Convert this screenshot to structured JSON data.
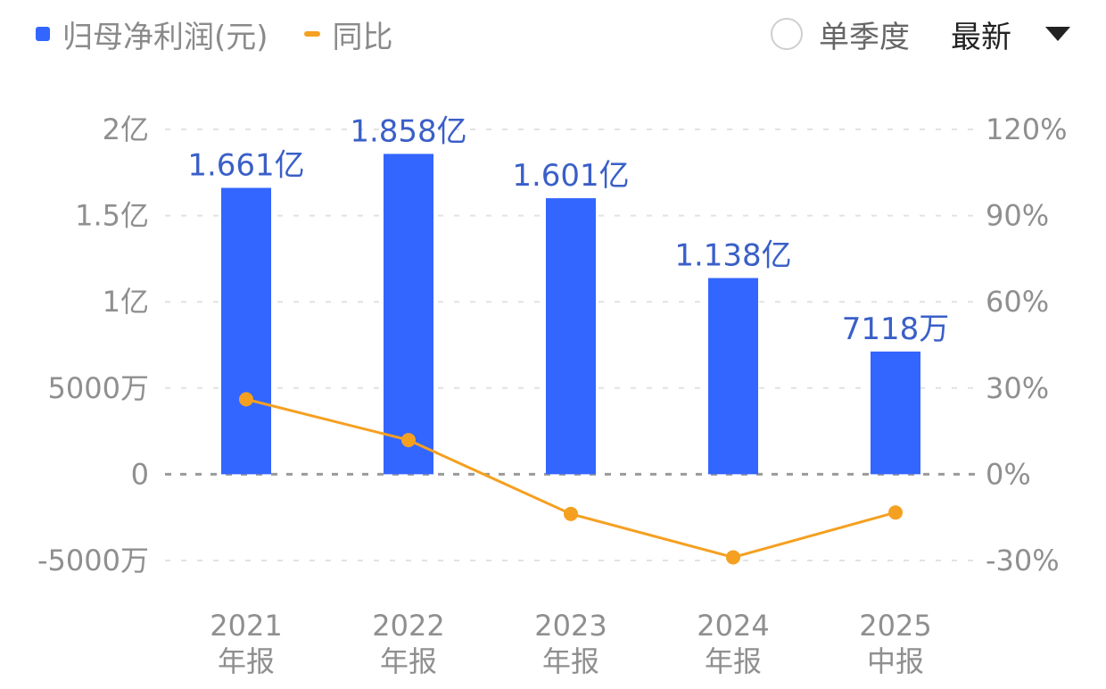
{
  "legend": {
    "bar_label": "归母净利润(元)",
    "line_label": "同比",
    "bar_color": "#3366ff",
    "line_color": "#f5a020"
  },
  "controls": {
    "single_quarter_label": "单季度",
    "single_quarter_checked": false,
    "period_select_value": "最新",
    "dropdown_icon": "caret-down-icon"
  },
  "chart_data": {
    "type": "bar+line",
    "title": "",
    "categories": [
      "2021 年报",
      "2022 年报",
      "2023 年报",
      "2024 年报",
      "2025 中报"
    ],
    "x_labels": [
      {
        "year": "2021",
        "period": "年报"
      },
      {
        "year": "2022",
        "period": "年报"
      },
      {
        "year": "2023",
        "period": "年报"
      },
      {
        "year": "2024",
        "period": "年报"
      },
      {
        "year": "2025",
        "period": "中报"
      }
    ],
    "series": [
      {
        "name": "归母净利润(元)",
        "type": "bar",
        "axis": "left",
        "values": [
          166100000,
          185800000,
          160100000,
          113800000,
          71180000
        ],
        "labels": [
          "1.661亿",
          "1.858亿",
          "1.601亿",
          "1.138亿",
          "7118万"
        ]
      },
      {
        "name": "同比",
        "type": "line",
        "axis": "right",
        "unit": "%",
        "values": [
          26.1,
          11.9,
          -13.8,
          -28.9,
          -13.3
        ]
      }
    ],
    "y_left": {
      "ticks": [
        "2亿",
        "1.5亿",
        "1亿",
        "5000万",
        "0",
        "-5000万"
      ],
      "tick_values": [
        200000000,
        150000000,
        100000000,
        50000000,
        0,
        -50000000
      ],
      "ylim": [
        -50000000,
        200000000
      ]
    },
    "y_right": {
      "ticks": [
        "120%",
        "90%",
        "60%",
        "30%",
        "0%",
        "-30%"
      ],
      "tick_values": [
        120,
        90,
        60,
        30,
        0,
        -30
      ],
      "ylim": [
        -30,
        120
      ]
    },
    "grid": true,
    "legend_position": "top-left"
  }
}
